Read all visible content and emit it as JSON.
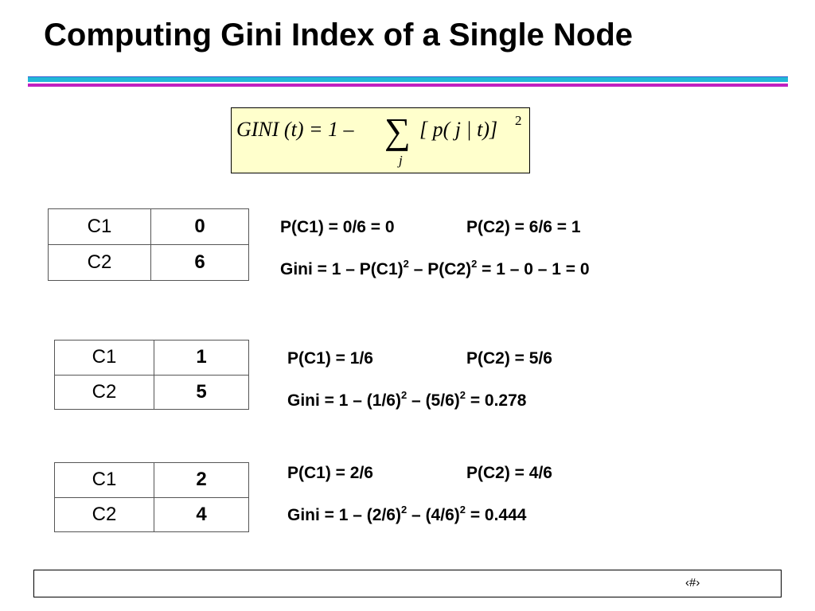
{
  "title": "Computing Gini Index of a Single Node",
  "formula": {
    "lhs": "GINI (t) = 1 –",
    "sum": "∑",
    "index": "j",
    "term": "[ p( j | t)]",
    "exponent": "2"
  },
  "examples": [
    {
      "table": {
        "rows": [
          [
            "C1",
            "0"
          ],
          [
            "C2",
            "6"
          ]
        ]
      },
      "probabilities": [
        "P(C1) = 0/6 = 0",
        "P(C2) = 6/6 = 1"
      ],
      "gini": [
        "Gini = 1 – P(C1)",
        "2",
        " – P(C2)",
        "2",
        " = 1 – 0 – 1 = 0"
      ]
    },
    {
      "table": {
        "rows": [
          [
            "C1",
            "1"
          ],
          [
            "C2",
            "5"
          ]
        ]
      },
      "probabilities": [
        "P(C1) = 1/6",
        "P(C2) = 5/6"
      ],
      "gini": [
        "Gini = 1 – (1/6)",
        "2",
        " – (5/6)",
        "2",
        " = 0.278"
      ]
    },
    {
      "table": {
        "rows": [
          [
            "C1",
            "2"
          ],
          [
            "C2",
            "4"
          ]
        ]
      },
      "probabilities": [
        "P(C1) = 2/6",
        "P(C2) = 4/6"
      ],
      "gini": [
        "Gini = 1 – (2/6)",
        "2",
        " – (4/6)",
        "2",
        " = 0.444"
      ]
    }
  ],
  "footer": "‹#›"
}
